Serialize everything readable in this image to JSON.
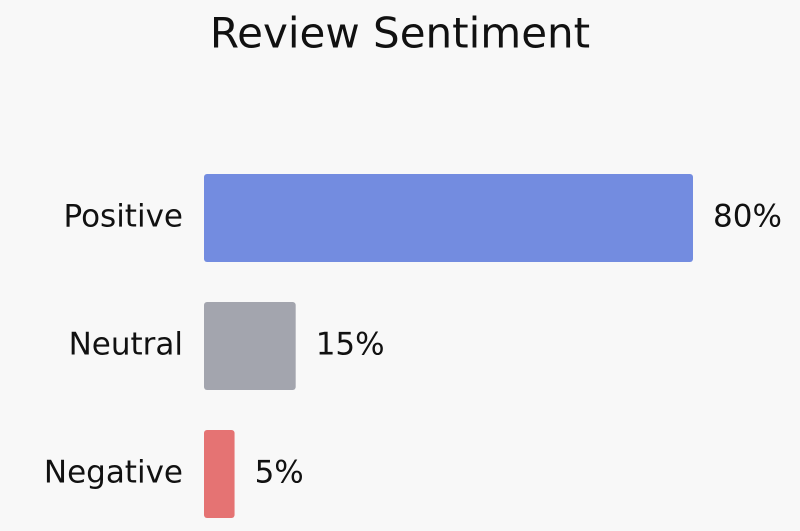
{
  "chart_data": {
    "type": "bar",
    "orientation": "horizontal",
    "title": "Review Sentiment",
    "categories": [
      "Positive",
      "Neutral",
      "Negative"
    ],
    "values": [
      80,
      15,
      5
    ],
    "value_labels": [
      "80%",
      "15%",
      "5%"
    ],
    "colors": [
      "#738ce0",
      "#a3a5ae",
      "#e57373"
    ]
  }
}
